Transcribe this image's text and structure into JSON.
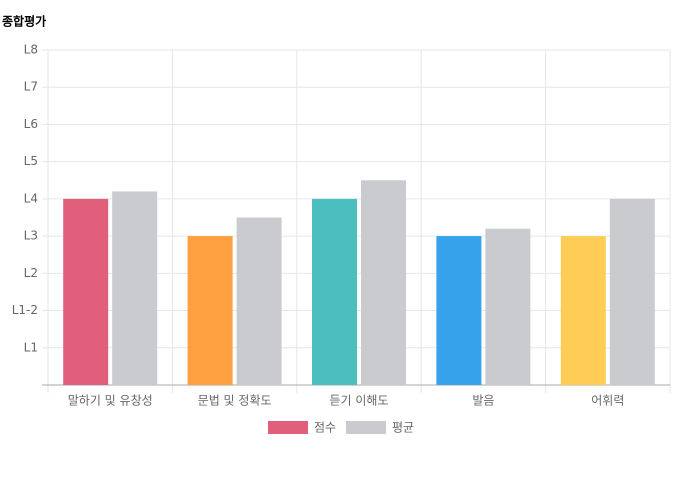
{
  "chart_data": {
    "type": "bar",
    "title": "종합평가",
    "categories": [
      "말하기 및 유창성",
      "문법 및 정확도",
      "듣기 이해도",
      "발음",
      "어휘력"
    ],
    "series": [
      {
        "name": "점수",
        "color": "#e05f7a",
        "colors": [
          "#e05f7a",
          "#ffa040",
          "#4bbfbf",
          "#36a2eb",
          "#ffcd56"
        ],
        "values": [
          5,
          4,
          5,
          4,
          4
        ]
      },
      {
        "name": "평균",
        "color": "#c9cbcf",
        "values": [
          5.2,
          4.5,
          5.5,
          4.2,
          5
        ]
      }
    ],
    "ylim": [
      0,
      9
    ],
    "yticks": [
      {
        "value": 1,
        "label": "L1"
      },
      {
        "value": 2,
        "label": "L1-2"
      },
      {
        "value": 3,
        "label": "L2"
      },
      {
        "value": 4,
        "label": "L3"
      },
      {
        "value": 5,
        "label": "L4"
      },
      {
        "value": 6,
        "label": "L5"
      },
      {
        "value": 7,
        "label": "L6"
      },
      {
        "value": 8,
        "label": "L7"
      },
      {
        "value": 9,
        "label": "L8"
      }
    ],
    "grid": true
  }
}
